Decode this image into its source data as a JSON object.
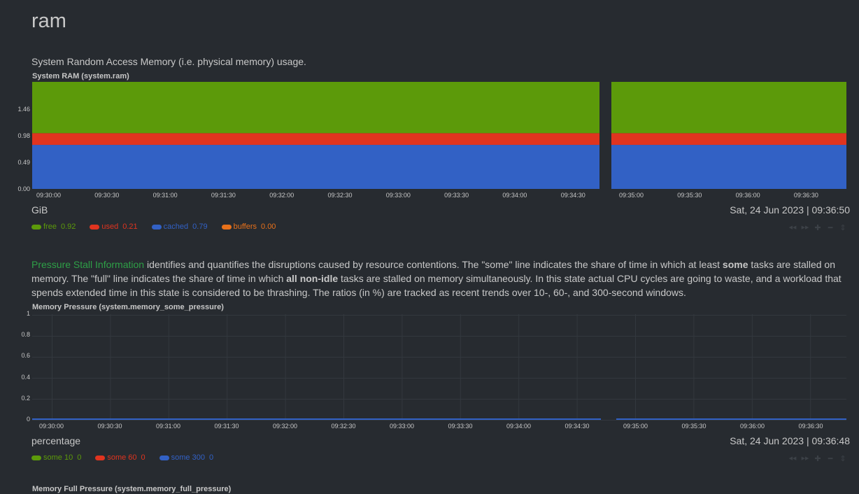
{
  "section": {
    "title": "ram",
    "description": "System Random Access Memory (i.e. physical memory) usage."
  },
  "psi": {
    "link_text": "Pressure Stall Information",
    "text_1": " identifies and quantifies the disruptions caused by resource contentions. The \"some\" line indicates the share of time in which at least ",
    "bold_1": "some",
    "text_2": " tasks are stalled on memory. The \"full\" line indicates the share of time in which ",
    "bold_2": "all non-idle",
    "text_3": " tasks are stalled on memory simultaneously. In this state actual CPU cycles are going to waste, and a workload that spends extended time in this state is considered to be thrashing. The ratios (in %) are tracked as recent trends over 10-, 60-, and 300-second windows."
  },
  "toolbar_icons": [
    "rewind-icon",
    "fast-forward-icon",
    "zoom-in-icon",
    "zoom-out-icon",
    "resize-icon"
  ],
  "chart_data": [
    {
      "type": "area",
      "title": "System RAM (system.ram)",
      "units": "GiB",
      "timestamp": "Sat, 24 Jun 2023 | 09:36:50",
      "y_ticks": [
        "1.46",
        "0.98",
        "0.49",
        "0.00"
      ],
      "ylim": [
        0,
        1.92
      ],
      "x_ticks": [
        "09:30:00",
        "09:30:30",
        "09:31:00",
        "09:31:30",
        "09:32:00",
        "09:32:30",
        "09:33:00",
        "09:33:30",
        "09:34:00",
        "09:34:30",
        "09:35:00",
        "09:35:30",
        "09:36:00",
        "09:36:30"
      ],
      "stacked": true,
      "gap_between": [
        "09:34:30",
        "09:35:00"
      ],
      "series": [
        {
          "name": "free",
          "value": "0.92",
          "color": "#5c9a0a"
        },
        {
          "name": "used",
          "value": "0.21",
          "color": "#e0341f"
        },
        {
          "name": "cached",
          "value": "0.79",
          "color": "#3261c5"
        },
        {
          "name": "buffers",
          "value": "0.00",
          "color": "#e8711a"
        }
      ],
      "stack_order": [
        "cached",
        "used",
        "free"
      ]
    },
    {
      "type": "line",
      "title": "Memory Pressure (system.memory_some_pressure)",
      "units": "percentage",
      "timestamp": "Sat, 24 Jun 2023 | 09:36:48",
      "y_ticks": [
        "1",
        "0.8",
        "0.6",
        "0.4",
        "0.2",
        "0"
      ],
      "ylim": [
        0,
        1
      ],
      "grid": true,
      "x_ticks": [
        "09:30:00",
        "09:30:30",
        "09:31:00",
        "09:31:30",
        "09:32:00",
        "09:32:30",
        "09:33:00",
        "09:33:30",
        "09:34:00",
        "09:34:30",
        "09:35:00",
        "09:35:30",
        "09:36:00",
        "09:36:30"
      ],
      "series": [
        {
          "name": "some 10",
          "value": "0",
          "color": "#5c9a0a"
        },
        {
          "name": "some 60",
          "value": "0",
          "color": "#e0341f"
        },
        {
          "name": "some 300",
          "value": "0",
          "color": "#3261c5"
        }
      ]
    },
    {
      "type": "line",
      "title": "Memory Full Pressure (system.memory_full_pressure)"
    }
  ]
}
